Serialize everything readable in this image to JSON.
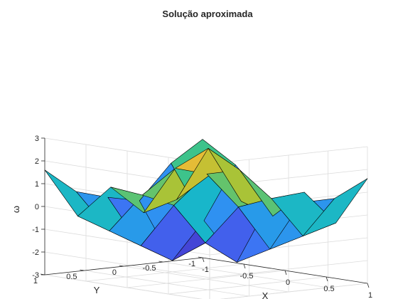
{
  "chart_data": {
    "type": "surface",
    "title": "Solução aproximada",
    "xlabel": "X",
    "ylabel": "Y",
    "zlabel": "ω",
    "xlim": [
      -1,
      1
    ],
    "ylim": [
      -1,
      1
    ],
    "zlim": [
      -3,
      3
    ],
    "x_ticks": [
      "-1",
      "-0.5",
      "0",
      "0.5",
      "1"
    ],
    "y_ticks": [
      "-1",
      "-0.5",
      "0",
      "0.5",
      "1"
    ],
    "z_ticks": [
      "-3",
      "-2",
      "-1",
      "0",
      "1",
      "2",
      "3"
    ],
    "grid": true,
    "colormap": "parula",
    "x": [
      -1,
      -0.6,
      -0.2,
      0.2,
      0.6,
      1
    ],
    "y": [
      -1,
      -0.6,
      -0.2,
      0.2,
      0.6,
      1
    ],
    "z": [
      [
        2.2,
        1.3,
        -0.2,
        0.1,
        0.5,
        1.6
      ],
      [
        1.3,
        -1.0,
        -2.6,
        -1.8,
        -1.0,
        -0.2
      ],
      [
        -0.2,
        -2.6,
        -1.6,
        0.2,
        0.8,
        1.3
      ],
      [
        0.1,
        -1.8,
        0.2,
        1.8,
        2.2,
        0.4
      ],
      [
        0.5,
        -1.0,
        0.8,
        2.2,
        3.3,
        1.2
      ],
      [
        1.6,
        -0.2,
        1.3,
        0.4,
        1.2,
        2.5
      ]
    ]
  }
}
